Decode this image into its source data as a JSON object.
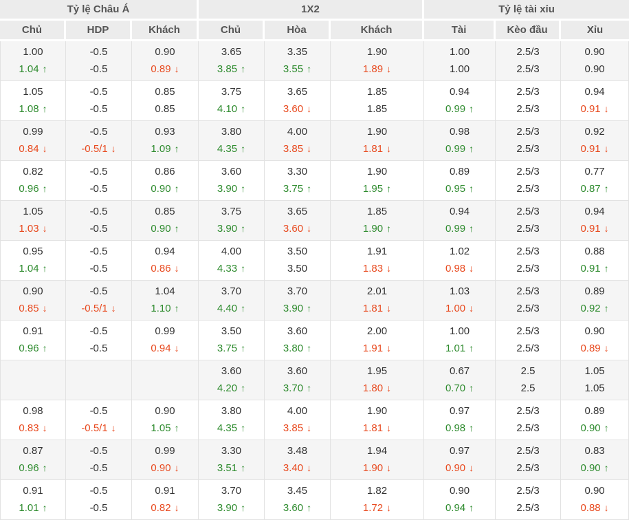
{
  "colors": {
    "up": "#2e8b2e",
    "down": "#e8491e",
    "header_bg": "#ececec",
    "band_bg": "#f5f5f5"
  },
  "table": {
    "groups": [
      {
        "label": "Tỷ lệ Châu Á",
        "columns": [
          "Chủ",
          "HDP",
          "Khách"
        ]
      },
      {
        "label": "1X2",
        "columns": [
          "Chủ",
          "Hòa",
          "Khách"
        ]
      },
      {
        "label": "Tỷ lệ tài xỉu",
        "columns": [
          "Tài",
          "Kèo đầu",
          "Xỉu"
        ]
      }
    ],
    "rows": [
      {
        "cells": [
          {
            "o": "1.00",
            "l": "1.04",
            "t": "up"
          },
          {
            "o": "-0.5",
            "l": "-0.5",
            "t": null
          },
          {
            "o": "0.90",
            "l": "0.89",
            "t": "down"
          },
          {
            "o": "3.65",
            "l": "3.85",
            "t": "up"
          },
          {
            "o": "3.35",
            "l": "3.55",
            "t": "up"
          },
          {
            "o": "1.90",
            "l": "1.89",
            "t": "down"
          },
          {
            "o": "1.00",
            "l": "1.00",
            "t": null
          },
          {
            "o": "2.5/3",
            "l": "2.5/3",
            "t": null
          },
          {
            "o": "0.90",
            "l": "0.90",
            "t": null
          }
        ]
      },
      {
        "cells": [
          {
            "o": "1.05",
            "l": "1.08",
            "t": "up"
          },
          {
            "o": "-0.5",
            "l": "-0.5",
            "t": null
          },
          {
            "o": "0.85",
            "l": "0.85",
            "t": null
          },
          {
            "o": "3.75",
            "l": "4.10",
            "t": "up"
          },
          {
            "o": "3.65",
            "l": "3.60",
            "t": "down"
          },
          {
            "o": "1.85",
            "l": "1.85",
            "t": null
          },
          {
            "o": "0.94",
            "l": "0.99",
            "t": "up"
          },
          {
            "o": "2.5/3",
            "l": "2.5/3",
            "t": null
          },
          {
            "o": "0.94",
            "l": "0.91",
            "t": "down"
          }
        ]
      },
      {
        "cells": [
          {
            "o": "0.99",
            "l": "0.84",
            "t": "down"
          },
          {
            "o": "-0.5",
            "l": "-0.5/1",
            "t": "down"
          },
          {
            "o": "0.93",
            "l": "1.09",
            "t": "up"
          },
          {
            "o": "3.80",
            "l": "4.35",
            "t": "up"
          },
          {
            "o": "4.00",
            "l": "3.85",
            "t": "down"
          },
          {
            "o": "1.90",
            "l": "1.81",
            "t": "down"
          },
          {
            "o": "0.98",
            "l": "0.99",
            "t": "up"
          },
          {
            "o": "2.5/3",
            "l": "2.5/3",
            "t": null
          },
          {
            "o": "0.92",
            "l": "0.91",
            "t": "down"
          }
        ]
      },
      {
        "cells": [
          {
            "o": "0.82",
            "l": "0.96",
            "t": "up"
          },
          {
            "o": "-0.5",
            "l": "-0.5",
            "t": null
          },
          {
            "o": "0.86",
            "l": "0.90",
            "t": "up"
          },
          {
            "o": "3.60",
            "l": "3.90",
            "t": "up"
          },
          {
            "o": "3.30",
            "l": "3.75",
            "t": "up"
          },
          {
            "o": "1.90",
            "l": "1.95",
            "t": "up"
          },
          {
            "o": "0.89",
            "l": "0.95",
            "t": "up"
          },
          {
            "o": "2.5/3",
            "l": "2.5/3",
            "t": null
          },
          {
            "o": "0.77",
            "l": "0.87",
            "t": "up"
          }
        ]
      },
      {
        "cells": [
          {
            "o": "1.05",
            "l": "1.03",
            "t": "down"
          },
          {
            "o": "-0.5",
            "l": "-0.5",
            "t": null
          },
          {
            "o": "0.85",
            "l": "0.90",
            "t": "up"
          },
          {
            "o": "3.75",
            "l": "3.90",
            "t": "up"
          },
          {
            "o": "3.65",
            "l": "3.60",
            "t": "down"
          },
          {
            "o": "1.85",
            "l": "1.90",
            "t": "up"
          },
          {
            "o": "0.94",
            "l": "0.99",
            "t": "up"
          },
          {
            "o": "2.5/3",
            "l": "2.5/3",
            "t": null
          },
          {
            "o": "0.94",
            "l": "0.91",
            "t": "down"
          }
        ]
      },
      {
        "cells": [
          {
            "o": "0.95",
            "l": "1.04",
            "t": "up"
          },
          {
            "o": "-0.5",
            "l": "-0.5",
            "t": null
          },
          {
            "o": "0.94",
            "l": "0.86",
            "t": "down"
          },
          {
            "o": "4.00",
            "l": "4.33",
            "t": "up"
          },
          {
            "o": "3.50",
            "l": "3.50",
            "t": null
          },
          {
            "o": "1.91",
            "l": "1.83",
            "t": "down"
          },
          {
            "o": "1.02",
            "l": "0.98",
            "t": "down"
          },
          {
            "o": "2.5/3",
            "l": "2.5/3",
            "t": null
          },
          {
            "o": "0.88",
            "l": "0.91",
            "t": "up"
          }
        ]
      },
      {
        "cells": [
          {
            "o": "0.90",
            "l": "0.85",
            "t": "down"
          },
          {
            "o": "-0.5",
            "l": "-0.5/1",
            "t": "down"
          },
          {
            "o": "1.04",
            "l": "1.10",
            "t": "up"
          },
          {
            "o": "3.70",
            "l": "4.40",
            "t": "up"
          },
          {
            "o": "3.70",
            "l": "3.90",
            "t": "up"
          },
          {
            "o": "2.01",
            "l": "1.81",
            "t": "down"
          },
          {
            "o": "1.03",
            "l": "1.00",
            "t": "down"
          },
          {
            "o": "2.5/3",
            "l": "2.5/3",
            "t": null
          },
          {
            "o": "0.89",
            "l": "0.92",
            "t": "up"
          }
        ]
      },
      {
        "cells": [
          {
            "o": "0.91",
            "l": "0.96",
            "t": "up"
          },
          {
            "o": "-0.5",
            "l": "-0.5",
            "t": null
          },
          {
            "o": "0.99",
            "l": "0.94",
            "t": "down"
          },
          {
            "o": "3.50",
            "l": "3.75",
            "t": "up"
          },
          {
            "o": "3.60",
            "l": "3.80",
            "t": "up"
          },
          {
            "o": "2.00",
            "l": "1.91",
            "t": "down"
          },
          {
            "o": "1.00",
            "l": "1.01",
            "t": "up"
          },
          {
            "o": "2.5/3",
            "l": "2.5/3",
            "t": null
          },
          {
            "o": "0.90",
            "l": "0.89",
            "t": "down"
          }
        ]
      },
      {
        "cells": [
          {
            "o": "",
            "l": "",
            "t": null
          },
          {
            "o": "",
            "l": "",
            "t": null
          },
          {
            "o": "",
            "l": "",
            "t": null
          },
          {
            "o": "3.60",
            "l": "4.20",
            "t": "up"
          },
          {
            "o": "3.60",
            "l": "3.70",
            "t": "up"
          },
          {
            "o": "1.95",
            "l": "1.80",
            "t": "down"
          },
          {
            "o": "0.67",
            "l": "0.70",
            "t": "up"
          },
          {
            "o": "2.5",
            "l": "2.5",
            "t": null
          },
          {
            "o": "1.05",
            "l": "1.05",
            "t": null
          }
        ]
      },
      {
        "cells": [
          {
            "o": "0.98",
            "l": "0.83",
            "t": "down"
          },
          {
            "o": "-0.5",
            "l": "-0.5/1",
            "t": "down"
          },
          {
            "o": "0.90",
            "l": "1.05",
            "t": "up"
          },
          {
            "o": "3.80",
            "l": "4.35",
            "t": "up"
          },
          {
            "o": "4.00",
            "l": "3.85",
            "t": "down"
          },
          {
            "o": "1.90",
            "l": "1.81",
            "t": "down"
          },
          {
            "o": "0.97",
            "l": "0.98",
            "t": "up"
          },
          {
            "o": "2.5/3",
            "l": "2.5/3",
            "t": null
          },
          {
            "o": "0.89",
            "l": "0.90",
            "t": "up"
          }
        ]
      },
      {
        "cells": [
          {
            "o": "0.87",
            "l": "0.96",
            "t": "up"
          },
          {
            "o": "-0.5",
            "l": "-0.5",
            "t": null
          },
          {
            "o": "0.99",
            "l": "0.90",
            "t": "down"
          },
          {
            "o": "3.30",
            "l": "3.51",
            "t": "up"
          },
          {
            "o": "3.48",
            "l": "3.40",
            "t": "down"
          },
          {
            "o": "1.94",
            "l": "1.90",
            "t": "down"
          },
          {
            "o": "0.97",
            "l": "0.90",
            "t": "down"
          },
          {
            "o": "2.5/3",
            "l": "2.5/3",
            "t": null
          },
          {
            "o": "0.83",
            "l": "0.90",
            "t": "up"
          }
        ]
      },
      {
        "cells": [
          {
            "o": "0.91",
            "l": "1.01",
            "t": "up"
          },
          {
            "o": "-0.5",
            "l": "-0.5",
            "t": null
          },
          {
            "o": "0.91",
            "l": "0.82",
            "t": "down"
          },
          {
            "o": "3.70",
            "l": "3.90",
            "t": "up"
          },
          {
            "o": "3.45",
            "l": "3.60",
            "t": "up"
          },
          {
            "o": "1.82",
            "l": "1.72",
            "t": "down"
          },
          {
            "o": "0.90",
            "l": "0.94",
            "t": "up"
          },
          {
            "o": "2.5/3",
            "l": "2.5/3",
            "t": null
          },
          {
            "o": "0.90",
            "l": "0.88",
            "t": "down"
          }
        ]
      }
    ]
  }
}
